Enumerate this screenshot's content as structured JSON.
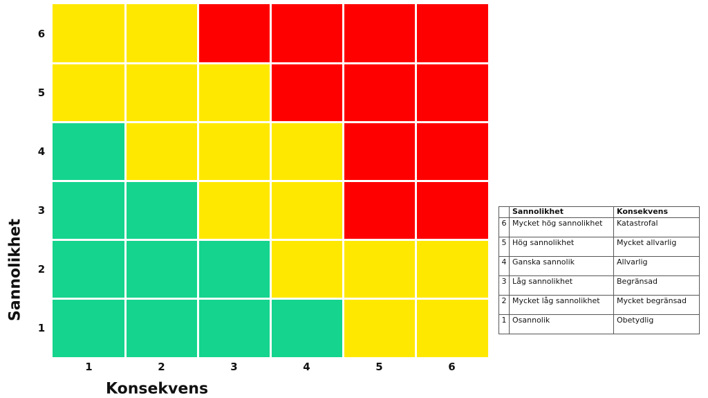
{
  "chart_data": {
    "type": "heatmap",
    "title": "",
    "xlabel": "Konsekvens",
    "ylabel": "Sannolikhet",
    "x": [
      1,
      2,
      3,
      4,
      5,
      6
    ],
    "y": [
      1,
      2,
      3,
      4,
      5,
      6
    ],
    "x_tick_labels": [
      "1",
      "2",
      "3",
      "4",
      "5",
      "6"
    ],
    "y_tick_labels": [
      "1",
      "2",
      "3",
      "4",
      "5",
      "6"
    ],
    "levels": {
      "green": "#15d48d",
      "yellow": "#ffe800",
      "red": "#ff0000"
    },
    "grid_rows_top_to_bottom": [
      {
        "sannolikhet": 6,
        "cells": [
          "yellow",
          "yellow",
          "red",
          "red",
          "red",
          "red"
        ]
      },
      {
        "sannolikhet": 5,
        "cells": [
          "yellow",
          "yellow",
          "yellow",
          "red",
          "red",
          "red"
        ]
      },
      {
        "sannolikhet": 4,
        "cells": [
          "green",
          "yellow",
          "yellow",
          "yellow",
          "red",
          "red"
        ]
      },
      {
        "sannolikhet": 3,
        "cells": [
          "green",
          "green",
          "yellow",
          "yellow",
          "red",
          "red"
        ]
      },
      {
        "sannolikhet": 2,
        "cells": [
          "green",
          "green",
          "green",
          "yellow",
          "yellow",
          "yellow"
        ]
      },
      {
        "sannolikhet": 1,
        "cells": [
          "green",
          "green",
          "green",
          "green",
          "yellow",
          "yellow"
        ]
      }
    ]
  },
  "legend_table": {
    "headers": [
      "",
      "Sannolikhet",
      "Konsekvens"
    ],
    "rows": [
      {
        "num": "6",
        "sannolikhet": "Mycket hög sannolikhet",
        "konsekvens": "Katastrofal"
      },
      {
        "num": "5",
        "sannolikhet": "Hög sannolikhet",
        "konsekvens": "Mycket allvarlig"
      },
      {
        "num": "4",
        "sannolikhet": "Ganska sannolik",
        "konsekvens": "Allvarlig"
      },
      {
        "num": "3",
        "sannolikhet": "Låg sannolikhet",
        "konsekvens": "Begränsad"
      },
      {
        "num": "2",
        "sannolikhet": "Mycket låg sannolikhet",
        "konsekvens": "Mycket begränsad"
      },
      {
        "num": "1",
        "sannolikhet": "Osannolik",
        "konsekvens": "Obetydlig"
      }
    ]
  }
}
